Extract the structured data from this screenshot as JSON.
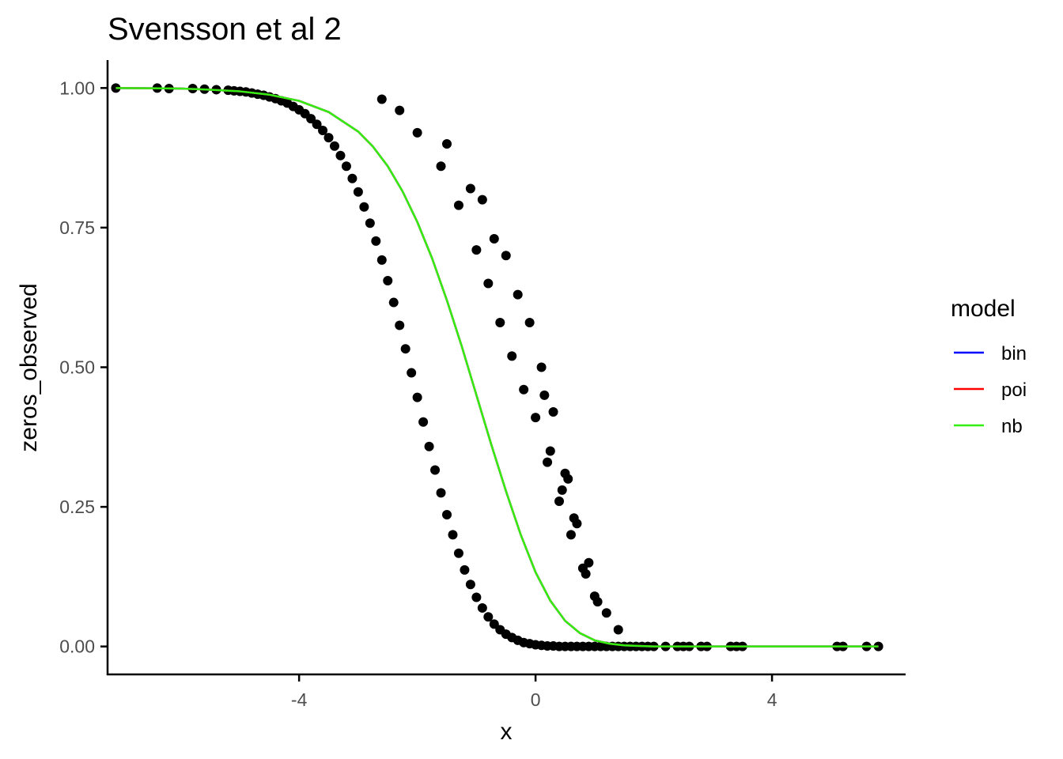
{
  "chart_data": {
    "type": "scatter",
    "title": "Svensson et al 2",
    "xlabel": "x",
    "ylabel": "zeros_observed",
    "xlim": [
      -7.24,
      6.26
    ],
    "ylim": [
      -0.05,
      1.05
    ],
    "x_ticks": [
      -4,
      0,
      4
    ],
    "x_tick_labels": [
      "-4",
      "0",
      "4"
    ],
    "y_ticks": [
      0,
      0.25,
      0.5,
      0.75,
      1
    ],
    "y_tick_labels": [
      "0.00",
      "0.25",
      "0.50",
      "0.75",
      "1.00"
    ],
    "grid": false,
    "legend": {
      "title": "model",
      "placement": "right",
      "entries": [
        {
          "label": "bin",
          "color": "#0000ff"
        },
        {
          "label": "poi",
          "color": "#ff0000"
        },
        {
          "label": "nb",
          "color": "#33ee11"
        }
      ]
    },
    "points": {
      "color": "#000000",
      "x": [
        -7.1,
        -6.4,
        -6.2,
        -5.8,
        -5.6,
        -5.4,
        -5.2,
        -5.1,
        -5.0,
        -4.9,
        -4.8,
        -4.7,
        -4.6,
        -4.5,
        -4.4,
        -4.3,
        -4.2,
        -4.1,
        -4.0,
        -3.9,
        -3.8,
        -3.7,
        -3.6,
        -3.5,
        -3.4,
        -3.3,
        -3.2,
        -3.1,
        -3.0,
        -2.9,
        -2.8,
        -2.7,
        -2.6,
        -2.5,
        -2.4,
        -2.3,
        -2.2,
        -2.1,
        -2.0,
        -1.9,
        -1.8,
        -1.7,
        -1.6,
        -1.5,
        -1.4,
        -1.3,
        -1.2,
        -1.1,
        -1.0,
        -0.9,
        -0.8,
        -0.7,
        -0.6,
        -0.5,
        -0.4,
        -0.3,
        -0.2,
        -0.1,
        0.0,
        0.1,
        0.2,
        0.3,
        0.4,
        0.5,
        0.6,
        0.7,
        0.8,
        0.9,
        1.0,
        1.1,
        1.2,
        1.3,
        1.4,
        1.5,
        1.6,
        1.7,
        1.8,
        1.9,
        2.0,
        2.2,
        2.4,
        2.5,
        2.6,
        2.8,
        2.9,
        3.3,
        3.4,
        3.5,
        5.1,
        5.2,
        5.6,
        5.8,
        -2.6,
        -2.3,
        -2.0,
        -1.6,
        -1.3,
        -1.0,
        -0.8,
        -0.6,
        -0.4,
        -0.2,
        0.0,
        0.2,
        0.4,
        0.6,
        0.8,
        1.0,
        -1.5,
        -1.1,
        -0.7,
        -0.3,
        0.1,
        0.3,
        0.5,
        0.7,
        0.9,
        1.2,
        1.4,
        -0.9,
        -0.5,
        -0.1,
        0.15,
        0.25,
        0.45,
        0.55,
        0.65,
        0.85,
        1.05
      ],
      "y": [
        1.0,
        1.0,
        0.999,
        0.999,
        0.998,
        0.997,
        0.996,
        0.995,
        0.994,
        0.993,
        0.991,
        0.989,
        0.987,
        0.984,
        0.981,
        0.977,
        0.973,
        0.967,
        0.961,
        0.954,
        0.945,
        0.935,
        0.924,
        0.911,
        0.896,
        0.879,
        0.86,
        0.838,
        0.814,
        0.787,
        0.758,
        0.726,
        0.692,
        0.655,
        0.616,
        0.575,
        0.533,
        0.49,
        0.446,
        0.402,
        0.358,
        0.316,
        0.275,
        0.236,
        0.2,
        0.167,
        0.137,
        0.111,
        0.088,
        0.069,
        0.053,
        0.04,
        0.03,
        0.022,
        0.016,
        0.011,
        0.007,
        0.005,
        0.003,
        0.002,
        0.001,
        0.001,
        0.0,
        0.0,
        0.0,
        0.0,
        0.0,
        0.0,
        0.0,
        0.0,
        0.0,
        0.0,
        0.0,
        0.0,
        0.0,
        0.0,
        0.0,
        0.0,
        0.0,
        0.0,
        0.0,
        0.0,
        0.0,
        0.0,
        0.0,
        0.0,
        0.0,
        0.0,
        0.0,
        0.0,
        0.0,
        0.0,
        0.98,
        0.96,
        0.92,
        0.86,
        0.79,
        0.71,
        0.65,
        0.58,
        0.52,
        0.46,
        0.41,
        0.33,
        0.26,
        0.2,
        0.14,
        0.09,
        0.9,
        0.82,
        0.73,
        0.63,
        0.5,
        0.42,
        0.31,
        0.22,
        0.15,
        0.06,
        0.03,
        0.8,
        0.7,
        0.58,
        0.45,
        0.35,
        0.28,
        0.3,
        0.23,
        0.13,
        0.08
      ]
    },
    "series": [
      {
        "name": "bin",
        "color": "#0000ff",
        "x": [
          -7.1,
          -6.5,
          -6.0,
          -5.5,
          -5.0,
          -4.5,
          -4.0,
          -3.5,
          -3.0,
          -2.75,
          -2.5,
          -2.25,
          -2.0,
          -1.75,
          -1.5,
          -1.25,
          -1.0,
          -0.75,
          -0.5,
          -0.25,
          0.0,
          0.25,
          0.5,
          0.75,
          1.0,
          1.25,
          1.5,
          1.75,
          2.0,
          2.5,
          3.0,
          4.0,
          5.0,
          5.8
        ],
        "y": [
          1.0,
          0.9995,
          0.999,
          0.997,
          0.994,
          0.988,
          0.977,
          0.957,
          0.922,
          0.895,
          0.86,
          0.815,
          0.76,
          0.695,
          0.62,
          0.538,
          0.45,
          0.362,
          0.278,
          0.2,
          0.133,
          0.082,
          0.046,
          0.024,
          0.011,
          0.005,
          0.002,
          0.001,
          0.0,
          0.0,
          0.0,
          0.0,
          0.0,
          0.0
        ]
      },
      {
        "name": "poi",
        "color": "#ff0000",
        "x": [
          -7.1,
          -6.5,
          -6.0,
          -5.5,
          -5.0,
          -4.5,
          -4.0,
          -3.5,
          -3.0,
          -2.75,
          -2.5,
          -2.25,
          -2.0,
          -1.75,
          -1.5,
          -1.25,
          -1.0,
          -0.75,
          -0.5,
          -0.25,
          0.0,
          0.25,
          0.5,
          0.75,
          1.0,
          1.25,
          1.5,
          1.75,
          2.0,
          2.5,
          3.0,
          4.0,
          5.0,
          5.8
        ],
        "y": [
          1.0,
          0.9995,
          0.999,
          0.997,
          0.994,
          0.988,
          0.977,
          0.957,
          0.922,
          0.895,
          0.86,
          0.815,
          0.76,
          0.695,
          0.62,
          0.538,
          0.45,
          0.362,
          0.278,
          0.2,
          0.133,
          0.082,
          0.046,
          0.024,
          0.011,
          0.005,
          0.002,
          0.001,
          0.0,
          0.0,
          0.0,
          0.0,
          0.0,
          0.0
        ]
      },
      {
        "name": "nb",
        "color": "#33ee11",
        "x": [
          -7.1,
          -6.5,
          -6.0,
          -5.5,
          -5.0,
          -4.5,
          -4.0,
          -3.5,
          -3.0,
          -2.75,
          -2.5,
          -2.25,
          -2.0,
          -1.75,
          -1.5,
          -1.25,
          -1.0,
          -0.75,
          -0.5,
          -0.25,
          0.0,
          0.25,
          0.5,
          0.75,
          1.0,
          1.25,
          1.5,
          1.75,
          2.0,
          2.5,
          3.0,
          4.0,
          5.0,
          5.8
        ],
        "y": [
          1.0,
          0.9995,
          0.999,
          0.997,
          0.994,
          0.988,
          0.977,
          0.957,
          0.922,
          0.895,
          0.86,
          0.815,
          0.76,
          0.695,
          0.62,
          0.538,
          0.45,
          0.362,
          0.278,
          0.2,
          0.133,
          0.082,
          0.046,
          0.024,
          0.011,
          0.005,
          0.002,
          0.001,
          0.0,
          0.0,
          0.0,
          0.0,
          0.0,
          0.0
        ]
      }
    ]
  }
}
